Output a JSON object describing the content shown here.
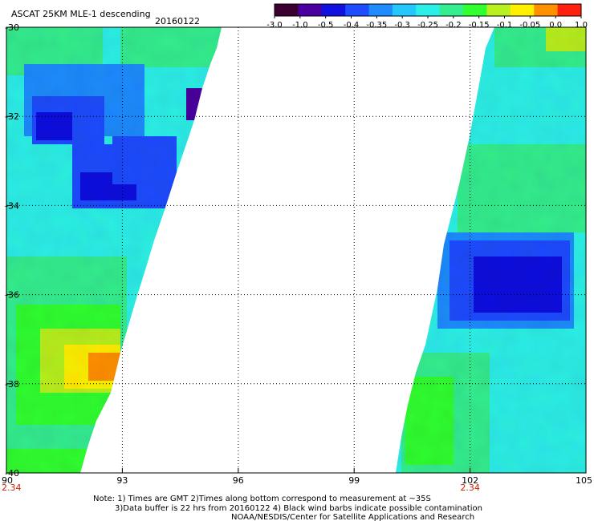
{
  "header": {
    "title": "ASCAT 25KM MLE-1 descending",
    "date": "20160122"
  },
  "colorbar": {
    "labels": [
      "-3.0",
      "-1.0",
      "-0.5",
      "-0.4",
      "-0.35",
      "-0.3",
      "-0.25",
      "-0.2",
      "-0.15",
      "-0.1",
      "-0.05",
      "0.0",
      "1.0"
    ],
    "colors": [
      "#3a0030",
      "#4a00a0",
      "#1010e0",
      "#1e4cff",
      "#1e8cff",
      "#24c8ff",
      "#2cf0e8",
      "#34ee90",
      "#30ff30",
      "#b8f020",
      "#fff000",
      "#ff9000",
      "#ff2010"
    ]
  },
  "axes": {
    "x_ticks": [
      "90",
      "93",
      "96",
      "99",
      "102",
      "105"
    ],
    "x_values": [
      90,
      93,
      96,
      99,
      102,
      105
    ],
    "y_ticks": [
      "-30",
      "-32",
      "-34",
      "-36",
      "-38",
      "-40"
    ],
    "y_values": [
      -30,
      -32,
      -34,
      -36,
      -38,
      -40
    ],
    "xlim": [
      90,
      105
    ],
    "ylim": [
      -40,
      -30
    ],
    "time_labels": [
      {
        "text": "2.34",
        "lon": 90
      },
      {
        "text": "2.34",
        "lon": 102
      }
    ]
  },
  "notes": {
    "line1": "Note: 1) Times are GMT 2)Times along bottom correspond to measurement at ~35S",
    "line2": "3)Data buffer is 22 hrs from 20160122 4) Black wind barbs indicate possible contamination",
    "line3": "NOAA/NESDIS/Center for Satellite Applications and Research"
  }
}
